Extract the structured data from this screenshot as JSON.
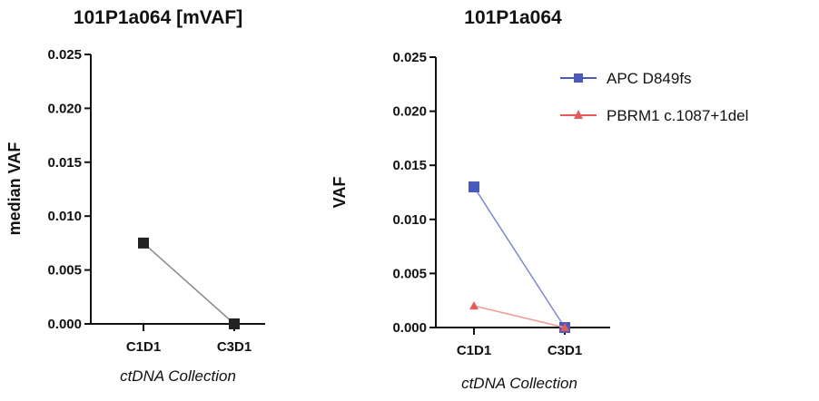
{
  "chart_data": [
    {
      "type": "line",
      "title": "101P1a064 [mVAF]",
      "xlabel": "ctDNA Collection",
      "ylabel": "median VAF",
      "categories": [
        "C1D1",
        "C3D1"
      ],
      "ylim": [
        0,
        0.025
      ],
      "yticks": [
        "0.000",
        "0.005",
        "0.010",
        "0.015",
        "0.020",
        "0.025"
      ],
      "series": [
        {
          "values": [
            0.0075,
            0.0
          ],
          "color": "#222222",
          "line_color": "#888888",
          "marker": "square"
        }
      ],
      "legend": null
    },
    {
      "type": "line",
      "title": "101P1a064",
      "xlabel": "ctDNA Collection",
      "ylabel": "VAF",
      "categories": [
        "C1D1",
        "C3D1"
      ],
      "ylim": [
        0,
        0.025
      ],
      "yticks": [
        "0.000",
        "0.005",
        "0.010",
        "0.015",
        "0.020",
        "0.025"
      ],
      "series": [
        {
          "name": "APC D849fs",
          "values": [
            0.013,
            0.0
          ],
          "color": "#4a5ab8",
          "line_color": "#7f86d0",
          "marker": "square"
        },
        {
          "name": "PBRM1 c.1087+1del",
          "values": [
            0.002,
            0.0
          ],
          "color": "#e85a5a",
          "line_color": "#f09a9a",
          "marker": "triangle"
        }
      ],
      "legend": "right"
    }
  ]
}
